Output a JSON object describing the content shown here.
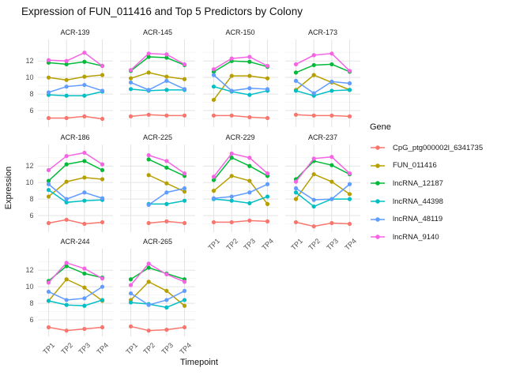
{
  "title": "Expression of FUN_011416 and Top 5 Predictors by Colony",
  "chart_data": {
    "type": "line",
    "title": "Expression of FUN_011416 and Top 5 Predictors by Colony",
    "xlabel": "Timepoint",
    "ylabel": "Expression",
    "legend_title": "Gene",
    "legend_position": "right",
    "grid": true,
    "x": [
      "TP1",
      "TP2",
      "TP3",
      "TP4"
    ],
    "yticks": [
      6,
      8,
      10,
      12
    ],
    "yticks_minor": [
      5,
      7,
      9,
      11,
      13
    ],
    "ylim": [
      4.0,
      14.6
    ],
    "series": [
      {
        "name": "CpG_ptg000002l_6341735",
        "color": "#F8766D"
      },
      {
        "name": "FUN_011416",
        "color": "#B79F00"
      },
      {
        "name": "lncRNA_12187",
        "color": "#00BA38"
      },
      {
        "name": "lncRNA_44398",
        "color": "#00BFC4"
      },
      {
        "name": "lncRNA_48119",
        "color": "#619CFF"
      },
      {
        "name": "lncRNA_9140",
        "color": "#F564E3"
      }
    ],
    "facets": [
      {
        "label": "ACR-139",
        "data": [
          [
            5.1,
            5.1,
            5.3,
            5.0
          ],
          [
            10.0,
            9.7,
            10.1,
            10.3
          ],
          [
            11.8,
            11.6,
            11.9,
            11.4
          ],
          [
            7.9,
            7.8,
            7.8,
            8.3
          ],
          [
            8.2,
            8.9,
            9.1,
            8.4
          ],
          [
            12.1,
            12.0,
            13.0,
            11.4
          ]
        ]
      },
      {
        "label": "ACR-145",
        "data": [
          [
            5.3,
            5.5,
            5.4,
            5.4
          ],
          [
            9.9,
            10.6,
            10.1,
            9.8
          ],
          [
            10.8,
            12.5,
            12.4,
            11.5
          ],
          [
            8.6,
            8.4,
            8.5,
            8.5
          ],
          [
            9.4,
            8.5,
            9.6,
            8.6
          ],
          [
            10.9,
            12.9,
            12.8,
            11.6
          ]
        ]
      },
      {
        "label": "ACR-150",
        "data": [
          [
            5.4,
            5.4,
            5.2,
            5.1
          ],
          [
            7.3,
            10.2,
            10.2,
            9.9
          ],
          [
            10.7,
            12.0,
            11.9,
            11.3
          ],
          [
            8.9,
            8.3,
            7.9,
            8.4
          ],
          [
            10.3,
            8.4,
            8.7,
            8.6
          ],
          [
            11.0,
            12.3,
            12.5,
            11.4
          ]
        ]
      },
      {
        "label": "ACR-173",
        "data": [
          [
            5.5,
            5.4,
            5.4,
            5.3
          ],
          [
            8.5,
            10.3,
            9.4,
            8.5
          ],
          [
            10.6,
            11.5,
            11.6,
            10.7
          ],
          [
            8.4,
            7.8,
            8.4,
            8.5
          ],
          [
            9.6,
            8.1,
            9.5,
            9.3
          ],
          [
            11.6,
            12.7,
            12.9,
            10.8
          ]
        ]
      },
      {
        "label": "ACR-186",
        "data": [
          [
            5.1,
            5.5,
            5.0,
            5.2
          ],
          [
            8.3,
            10.1,
            10.6,
            10.4
          ],
          [
            10.2,
            12.2,
            12.6,
            11.5
          ],
          [
            9.1,
            7.6,
            7.8,
            7.9
          ],
          [
            9.8,
            8.0,
            8.8,
            8.1
          ],
          [
            11.5,
            13.2,
            13.6,
            12.2
          ]
        ]
      },
      {
        "label": "ACR-225",
        "data": [
          [
            null,
            5.1,
            5.3,
            5.1
          ],
          [
            null,
            10.9,
            9.9,
            8.9
          ],
          [
            null,
            12.8,
            11.8,
            10.8
          ],
          [
            null,
            7.4,
            7.4,
            7.8
          ],
          [
            null,
            7.3,
            8.8,
            9.3
          ],
          [
            null,
            13.3,
            12.6,
            11.1
          ]
        ]
      },
      {
        "label": "ACR-229",
        "data": [
          [
            5.2,
            5.2,
            5.4,
            5.3
          ],
          [
            9.0,
            10.8,
            10.2,
            7.4
          ],
          [
            10.3,
            13.0,
            12.0,
            10.8
          ],
          [
            8.0,
            7.8,
            7.5,
            8.3
          ],
          [
            8.1,
            8.3,
            8.8,
            9.8
          ],
          [
            10.7,
            13.5,
            13.0,
            11.1
          ]
        ]
      },
      {
        "label": "ACR-237",
        "data": [
          [
            5.2,
            4.7,
            5.1,
            5.0
          ],
          [
            8.0,
            11.0,
            10.1,
            8.6
          ],
          [
            10.4,
            12.6,
            12.1,
            11.0
          ],
          [
            8.8,
            7.1,
            8.0,
            8.0
          ],
          [
            9.3,
            7.9,
            8.0,
            9.8
          ],
          [
            10.1,
            12.9,
            13.1,
            11.1
          ]
        ]
      },
      {
        "label": "ACR-244",
        "data": [
          [
            5.1,
            4.7,
            4.9,
            5.1
          ],
          [
            8.3,
            10.9,
            9.9,
            8.3
          ],
          [
            10.7,
            12.5,
            11.6,
            11.1
          ],
          [
            8.3,
            7.8,
            7.7,
            8.4
          ],
          [
            9.4,
            8.4,
            8.6,
            10.0
          ],
          [
            10.5,
            12.9,
            12.2,
            11.0
          ]
        ]
      },
      {
        "label": "ACR-265",
        "data": [
          [
            5.2,
            4.7,
            4.8,
            5.1
          ],
          [
            8.4,
            10.6,
            9.5,
            7.7
          ],
          [
            10.9,
            12.3,
            11.6,
            10.9
          ],
          [
            8.1,
            7.9,
            7.5,
            8.4
          ],
          [
            9.2,
            7.8,
            8.4,
            9.5
          ],
          [
            10.2,
            12.8,
            11.5,
            10.6
          ]
        ]
      }
    ],
    "grid_major_color": "#e3e3e3",
    "grid_minor_color": "#f2f2f2"
  }
}
